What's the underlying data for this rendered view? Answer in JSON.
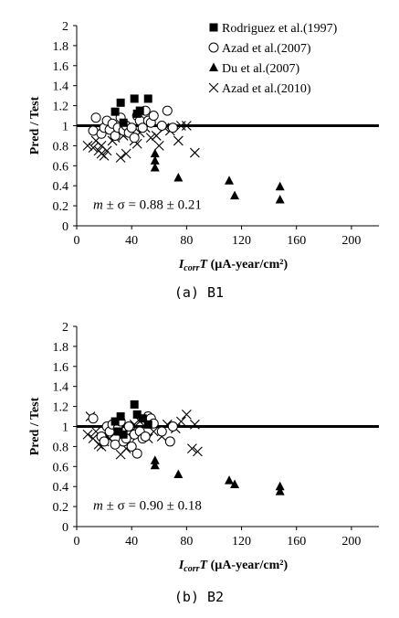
{
  "chart_data": [
    {
      "type": "scatter",
      "ylabel": "Pred / Test",
      "xlabel_main": "I",
      "xlabel_sub": "corr",
      "xlabel_T": "T",
      "xlabel_units": " (µA-year/cm²)",
      "xticks": [
        "0",
        "40",
        "80",
        "120",
        "160",
        "200"
      ],
      "yticks": [
        "0",
        "0.2",
        "0.4",
        "0.6",
        "0.8",
        "1",
        "1.2",
        "1.4",
        "1.6",
        "1.8",
        "2"
      ],
      "xlim": [
        0,
        220
      ],
      "ylim": [
        0,
        2
      ],
      "reference_line": 1,
      "annotation_m": "m",
      "annotation_rest": " ± σ = 0.88 ± 0.21",
      "caption": "(a) B1",
      "legend_position": "top-right",
      "series": [
        {
          "name": "Rodriguez et al.(1997)",
          "marker": "filled-square",
          "points": [
            [
              28,
              1.14
            ],
            [
              32,
              1.23
            ],
            [
              34,
              1.03
            ],
            [
              42,
              1.27
            ],
            [
              44,
              1.12
            ],
            [
              46,
              1.15
            ],
            [
              52,
              1.27
            ]
          ]
        },
        {
          "name": "Azad et al.(2007)",
          "marker": "open-circle",
          "points": [
            [
              12,
              0.95
            ],
            [
              14,
              1.08
            ],
            [
              18,
              0.92
            ],
            [
              20,
              0.98
            ],
            [
              22,
              1.05
            ],
            [
              24,
              0.96
            ],
            [
              26,
              1.02
            ],
            [
              28,
              0.9
            ],
            [
              30,
              0.98
            ],
            [
              32,
              1.08
            ],
            [
              34,
              0.95
            ],
            [
              36,
              1.0
            ],
            [
              38,
              0.93
            ],
            [
              40,
              0.98
            ],
            [
              42,
              0.88
            ],
            [
              44,
              1.1
            ],
            [
              46,
              1.05
            ],
            [
              48,
              0.98
            ],
            [
              50,
              1.15
            ],
            [
              52,
              1.05
            ],
            [
              54,
              1.03
            ],
            [
              56,
              1.1
            ],
            [
              62,
              1.0
            ],
            [
              66,
              1.15
            ],
            [
              70,
              0.98
            ]
          ]
        },
        {
          "name": "Du et al.(2007)",
          "marker": "filled-triangle",
          "points": [
            [
              57,
              0.72
            ],
            [
              57,
              0.65
            ],
            [
              57,
              0.58
            ],
            [
              74,
              0.48
            ],
            [
              111,
              0.45
            ],
            [
              115,
              0.3
            ],
            [
              148,
              0.39
            ],
            [
              148,
              0.26
            ]
          ]
        },
        {
          "name": "Azad et al.(2010)",
          "marker": "cross",
          "points": [
            [
              8,
              0.8
            ],
            [
              12,
              0.78
            ],
            [
              14,
              0.85
            ],
            [
              16,
              0.75
            ],
            [
              18,
              0.72
            ],
            [
              18,
              0.8
            ],
            [
              20,
              0.7
            ],
            [
              22,
              0.75
            ],
            [
              26,
              0.85
            ],
            [
              28,
              0.88
            ],
            [
              32,
              0.68
            ],
            [
              34,
              0.9
            ],
            [
              36,
              0.72
            ],
            [
              38,
              0.93
            ],
            [
              42,
              0.85
            ],
            [
              44,
              0.82
            ],
            [
              46,
              0.93
            ],
            [
              50,
              0.98
            ],
            [
              54,
              0.88
            ],
            [
              58,
              0.9
            ],
            [
              60,
              0.8
            ],
            [
              64,
              0.98
            ],
            [
              68,
              0.95
            ],
            [
              74,
              0.85
            ],
            [
              76,
              1.0
            ],
            [
              80,
              1.0
            ],
            [
              86,
              0.73
            ]
          ]
        }
      ]
    },
    {
      "type": "scatter",
      "ylabel": "Pred / Test",
      "xlabel_main": "I",
      "xlabel_sub": "corr",
      "xlabel_T": "T",
      "xlabel_units": " (µA-year/cm²)",
      "xticks": [
        "0",
        "40",
        "80",
        "120",
        "160",
        "200"
      ],
      "yticks": [
        "0",
        "0.2",
        "0.4",
        "0.6",
        "0.8",
        "1",
        "1.2",
        "1.4",
        "1.6",
        "1.8",
        "2"
      ],
      "xlim": [
        0,
        220
      ],
      "ylim": [
        0,
        2
      ],
      "reference_line": 1,
      "annotation_m": "m",
      "annotation_rest": " ± σ = 0.90 ± 0.18",
      "caption": "(b) B2",
      "series": [
        {
          "name": "Rodriguez et al.(1997)",
          "marker": "filled-square",
          "points": [
            [
              28,
              1.05
            ],
            [
              30,
              0.95
            ],
            [
              32,
              1.1
            ],
            [
              34,
              0.92
            ],
            [
              42,
              1.22
            ],
            [
              44,
              1.12
            ],
            [
              48,
              1.08
            ],
            [
              52,
              1.02
            ]
          ]
        },
        {
          "name": "Azad et al.(2007)",
          "marker": "open-circle",
          "points": [
            [
              12,
              1.08
            ],
            [
              18,
              0.9
            ],
            [
              20,
              0.85
            ],
            [
              22,
              1.0
            ],
            [
              24,
              0.95
            ],
            [
              26,
              1.02
            ],
            [
              28,
              0.82
            ],
            [
              30,
              0.98
            ],
            [
              32,
              1.05
            ],
            [
              34,
              0.85
            ],
            [
              36,
              0.88
            ],
            [
              38,
              1.0
            ],
            [
              40,
              0.8
            ],
            [
              42,
              0.92
            ],
            [
              44,
              0.73
            ],
            [
              46,
              0.95
            ],
            [
              48,
              0.88
            ],
            [
              50,
              0.9
            ],
            [
              52,
              1.1
            ],
            [
              54,
              1.08
            ],
            [
              56,
              1.03
            ],
            [
              62,
              0.95
            ],
            [
              68,
              0.85
            ],
            [
              70,
              1.0
            ]
          ]
        },
        {
          "name": "Du et al.(2007)",
          "marker": "filled-triangle",
          "points": [
            [
              57,
              0.66
            ],
            [
              57,
              0.61
            ],
            [
              74,
              0.52
            ],
            [
              111,
              0.46
            ],
            [
              115,
              0.42
            ],
            [
              148,
              0.4
            ],
            [
              148,
              0.35
            ]
          ]
        },
        {
          "name": "Azad et al.(2010)",
          "marker": "cross",
          "points": [
            [
              8,
              0.92
            ],
            [
              10,
              1.1
            ],
            [
              12,
              0.88
            ],
            [
              14,
              0.95
            ],
            [
              16,
              0.82
            ],
            [
              18,
              0.8
            ],
            [
              20,
              0.85
            ],
            [
              22,
              0.9
            ],
            [
              24,
              0.88
            ],
            [
              28,
              0.95
            ],
            [
              32,
              0.72
            ],
            [
              34,
              1.0
            ],
            [
              36,
              0.78
            ],
            [
              40,
              0.95
            ],
            [
              42,
              1.02
            ],
            [
              44,
              0.9
            ],
            [
              46,
              1.05
            ],
            [
              52,
              0.88
            ],
            [
              56,
              0.95
            ],
            [
              62,
              0.9
            ],
            [
              66,
              1.02
            ],
            [
              72,
              0.98
            ],
            [
              76,
              1.05
            ],
            [
              80,
              1.12
            ],
            [
              84,
              0.78
            ],
            [
              86,
              1.02
            ],
            [
              88,
              0.75
            ]
          ]
        }
      ]
    }
  ]
}
